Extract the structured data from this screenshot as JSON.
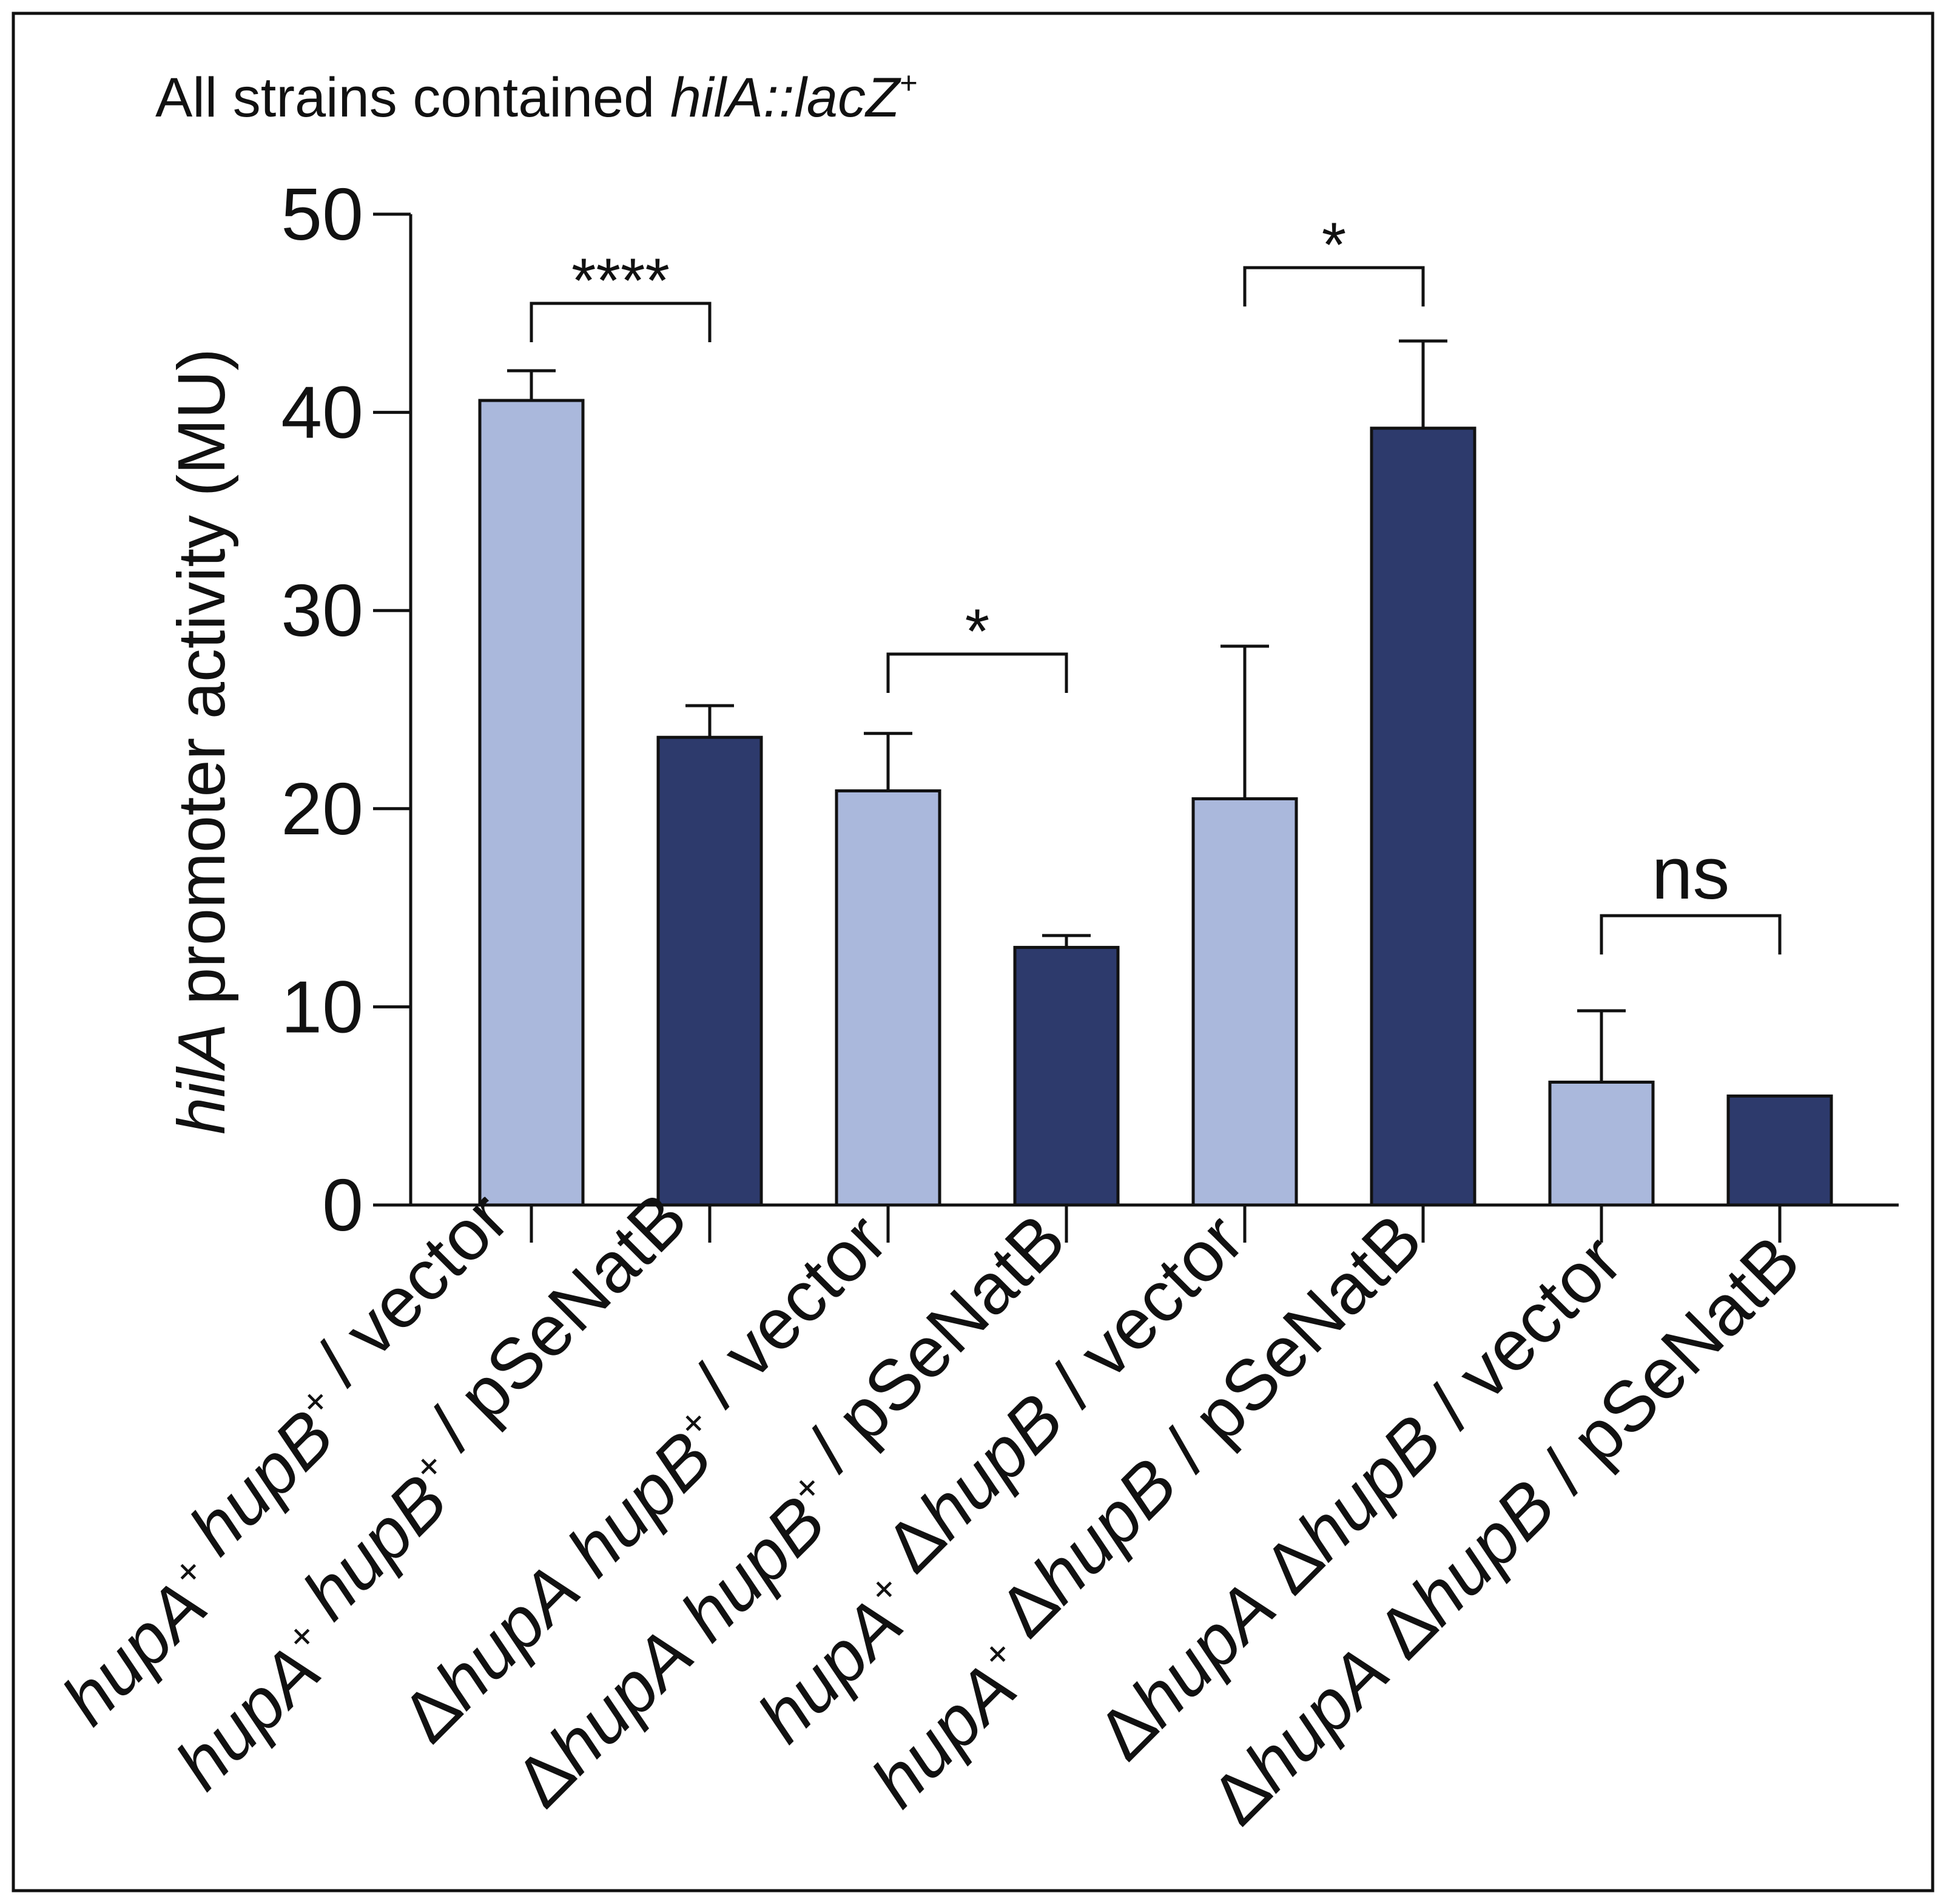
{
  "chart_data": {
    "type": "bar",
    "title_prefix": "All strains contained ",
    "title_gene": "hilA::lacZ",
    "title_superscript": "+",
    "ylabel_gene": "hilA",
    "ylabel_rest": " promoter activity (MU)",
    "ylim": [
      0,
      50
    ],
    "yticks": [
      "0",
      "10",
      "20",
      "30",
      "40",
      "50"
    ],
    "categories": [
      "hupA+ hupB+ / vector",
      "hupA+ hupB+ / pSeNatB",
      "ΔhupA hupB+ / vector",
      "ΔhupA hupB+ / pSeNatB",
      "hupA+ ΔhupB / vector",
      "hupA+ ΔhupB / pSeNatB",
      "ΔhupA ΔhupB / vector",
      "ΔhupA ΔhupB / pSeNatB"
    ],
    "values": [
      40.6,
      23.6,
      20.9,
      13.0,
      20.5,
      39.2,
      6.2,
      5.5
    ],
    "errors": [
      1.5,
      1.6,
      2.9,
      0.6,
      7.7,
      4.4,
      3.6,
      0.0
    ],
    "bar_colors": [
      "#aab8dc",
      "#2d3a6c",
      "#aab8dc",
      "#2d3a6c",
      "#aab8dc",
      "#2d3a6c",
      "#aab8dc",
      "#2d3a6c"
    ],
    "significance": [
      {
        "pair": [
          0,
          1
        ],
        "label": "****",
        "y": 45.5
      },
      {
        "pair": [
          2,
          3
        ],
        "label": "*",
        "y": 27.8
      },
      {
        "pair": [
          4,
          5
        ],
        "label": "*",
        "y": 47.3
      },
      {
        "pair": [
          6,
          7
        ],
        "label": "ns",
        "y": 14.6
      }
    ]
  }
}
